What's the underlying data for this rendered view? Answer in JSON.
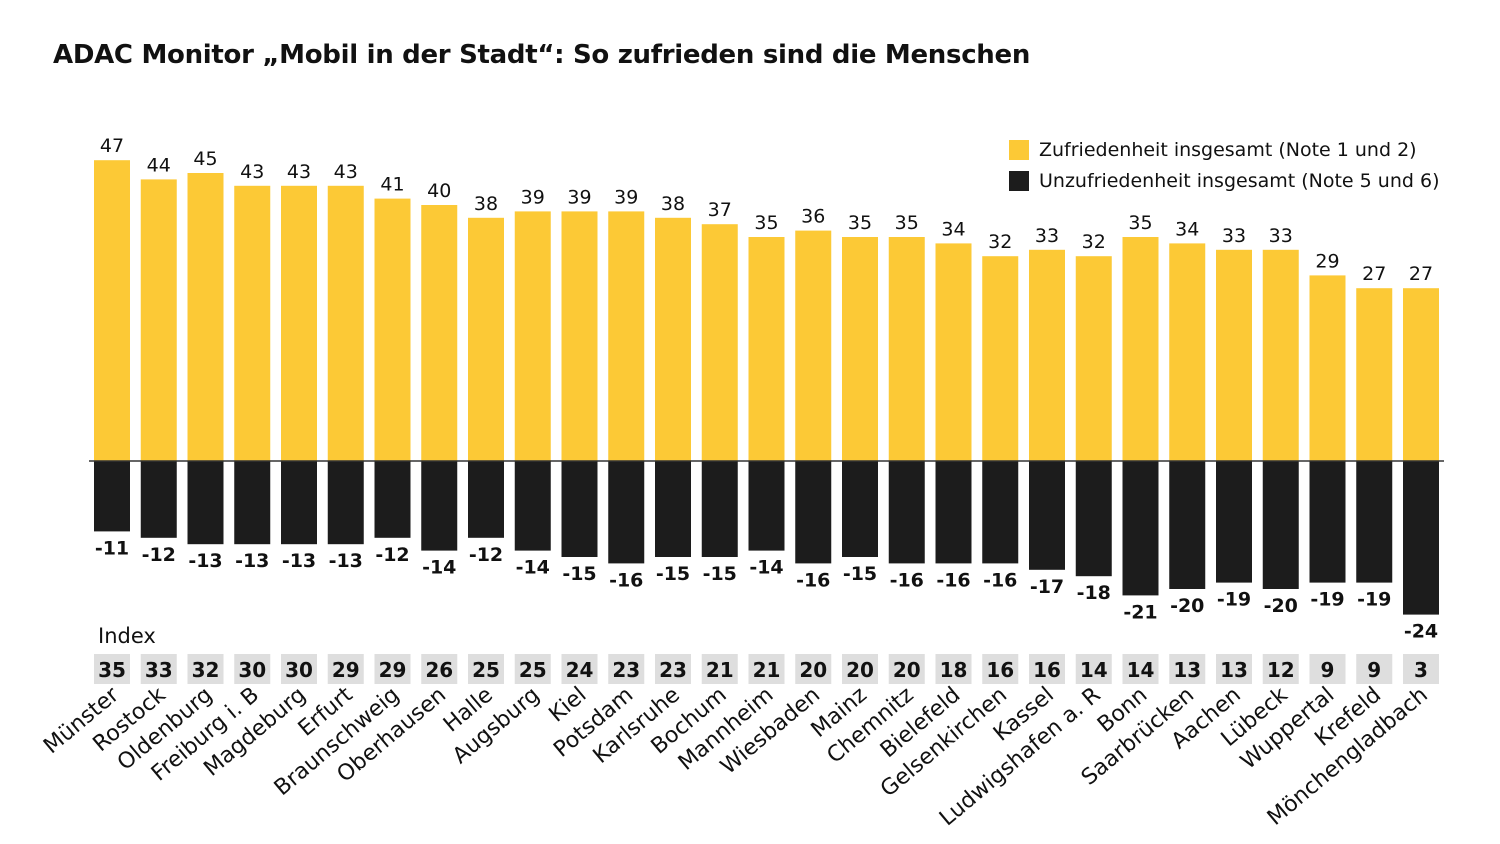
{
  "chart_data": {
    "type": "bar",
    "title": "ADAC Monitor „Mobil in der Stadt“: So zufrieden sind die Menschen",
    "categories": [
      "Münster",
      "Rostock",
      "Oldenburg",
      "Freiburg i. B",
      "Magdeburg",
      "Erfurt",
      "Braunschweig",
      "Oberhausen",
      "Halle",
      "Augsburg",
      "Kiel",
      "Potsdam",
      "Karlsruhe",
      "Bochum",
      "Mannheim",
      "Wiesbaden",
      "Mainz",
      "Chemnitz",
      "Bielefeld",
      "Gelsenkirchen",
      "Kassel",
      "Ludwigshafen a. R",
      "Bonn",
      "Saarbrücken",
      "Aachen",
      "Lübeck",
      "Wuppertal",
      "Krefeld",
      "Mönchengladbach"
    ],
    "series": [
      {
        "name": "Zufriedenheit insgesamt (Note 1 und 2)",
        "color": "#fcc936",
        "values": [
          47,
          44,
          45,
          43,
          43,
          43,
          41,
          40,
          38,
          39,
          39,
          39,
          38,
          37,
          35,
          36,
          35,
          35,
          34,
          32,
          33,
          32,
          35,
          34,
          33,
          33,
          29,
          27,
          27
        ]
      },
      {
        "name": "Unzufriedenheit insgesamt (Note 5 und 6)",
        "color": "#1c1c1c",
        "values": [
          -11,
          -12,
          -13,
          -13,
          -13,
          -13,
          -12,
          -14,
          -12,
          -14,
          -15,
          -16,
          -15,
          -15,
          -14,
          -16,
          -15,
          -16,
          -16,
          -16,
          -17,
          -18,
          -21,
          -20,
          -19,
          -20,
          -19,
          -19,
          -24
        ]
      }
    ],
    "index": {
      "label": "Index",
      "values": [
        35,
        33,
        32,
        30,
        30,
        29,
        29,
        26,
        25,
        25,
        24,
        23,
        23,
        21,
        21,
        20,
        20,
        20,
        18,
        16,
        16,
        14,
        14,
        13,
        13,
        12,
        9,
        9,
        3
      ]
    },
    "legend_position": "top-right",
    "grid": false
  },
  "colors": {
    "positive": "#fcc936",
    "negative": "#1c1c1c",
    "index_bg": "#dedede",
    "axis": "#333333"
  }
}
